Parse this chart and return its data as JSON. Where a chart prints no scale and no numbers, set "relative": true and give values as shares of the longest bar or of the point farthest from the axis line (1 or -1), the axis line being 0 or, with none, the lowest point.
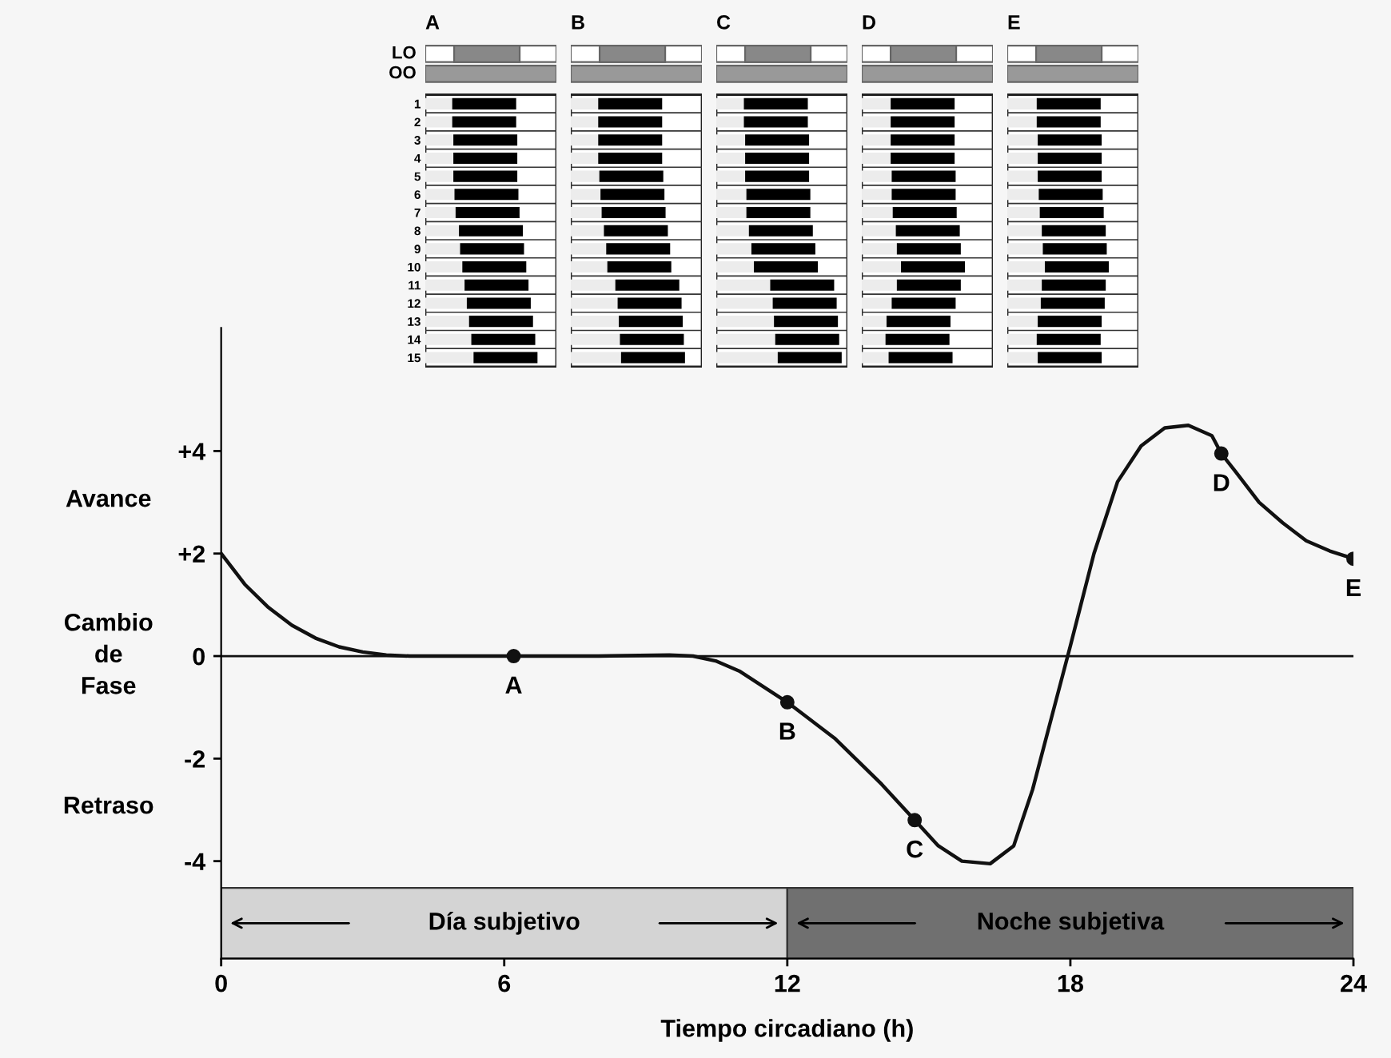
{
  "chart_data": [
    {
      "type": "line",
      "xlabel": "Tiempo circadiano (h)",
      "x": [
        0,
        0.5,
        1,
        1.5,
        2,
        2.5,
        3,
        3.5,
        4,
        6.2,
        8,
        9.5,
        10,
        10.5,
        11,
        11.5,
        12,
        13,
        14,
        14.7,
        15.2,
        15.7,
        16.3,
        16.8,
        17.2,
        17.6,
        18,
        18.5,
        19,
        19.5,
        20,
        20.5,
        21,
        21.2,
        21.5,
        22,
        22.5,
        23,
        23.5,
        24
      ],
      "series": [
        {
          "type": "line",
          "color": "#111111",
          "values": [
            2,
            1.4,
            0.95,
            0.6,
            0.35,
            0.18,
            0.08,
            0.02,
            0,
            0,
            0,
            0.02,
            0,
            -0.1,
            -0.3,
            -0.6,
            -0.9,
            -1.6,
            -2.5,
            -3.2,
            -3.7,
            -4.0,
            -4.05,
            -3.7,
            -2.6,
            -1.2,
            0.2,
            2.0,
            3.4,
            4.1,
            4.45,
            4.5,
            4.3,
            3.95,
            3.6,
            3.0,
            2.6,
            2.25,
            2.05,
            1.9
          ],
          "marker": "none"
        },
        {
          "type": "scatter",
          "color": "#111111",
          "x": [
            6.2,
            12,
            14.7,
            21.2,
            24
          ],
          "values": [
            0,
            -0.9,
            -3.2,
            3.95,
            1.9
          ],
          "marker": "circle"
        }
      ],
      "xlim": [
        0,
        24
      ],
      "xticks": [
        0,
        6,
        12,
        18,
        24
      ],
      "ylim": [
        -5.9,
        6.4
      ],
      "yticks": [
        {
          "value": 4,
          "label": "+4"
        },
        {
          "value": 2,
          "label": "+2"
        },
        0,
        -2,
        -4
      ],
      "ref_lines": [
        {
          "axis": "y",
          "value": 0,
          "color": "#111111"
        }
      ],
      "bands": [
        {
          "axis": "x",
          "from": 0,
          "to": 12,
          "label": "Día subjetivo",
          "color": "#d4d4d4"
        },
        {
          "axis": "x",
          "from": 12,
          "to": 24,
          "label": "Noche subjetiva",
          "color": "#707070"
        }
      ],
      "annotations": [
        {
          "text": "A",
          "x": 6.2,
          "y": 0
        },
        {
          "text": "B",
          "x": 12,
          "y": -0.9
        },
        {
          "text": "C",
          "x": 14.7,
          "y": -3.2
        },
        {
          "text": "D",
          "x": 21.2,
          "y": 3.95
        },
        {
          "text": "E",
          "x": 24,
          "y": 1.9
        },
        "Avance",
        "Cambio\nde\nFase",
        "Retraso"
      ],
      "grid": false,
      "legend": false
    },
    {
      "type": "bar",
      "orientation": "horizontal",
      "relative": true,
      "stacked": true,
      "title": "A",
      "tick_labels": "y",
      "categories": [
        "1",
        "2",
        "3",
        "4",
        "5",
        "6",
        "7",
        "8",
        "9",
        "10",
        "11",
        "12",
        "13",
        "14",
        "15"
      ],
      "series": [
        {
          "color": "#ececec",
          "values": [
            0.24,
            0.24,
            0.25,
            0.25,
            0.25,
            0.26,
            0.27,
            0.3,
            0.31,
            0.33,
            0.35,
            0.37,
            0.39,
            0.41,
            0.43
          ]
        },
        {
          "color": "#000000",
          "values": [
            0.57,
            0.57,
            0.57,
            0.57,
            0.57,
            0.57,
            0.57,
            0.57,
            0.57,
            0.57,
            0.57,
            0.57,
            0.57,
            0.57,
            0.57
          ]
        }
      ],
      "annotations": [
        "LO",
        "OO"
      ]
    },
    {
      "type": "bar",
      "orientation": "horizontal",
      "relative": true,
      "stacked": true,
      "title": "B",
      "tick_labels": false,
      "categories": [
        "1",
        "2",
        "3",
        "4",
        "5",
        "6",
        "7",
        "8",
        "9",
        "10",
        "11",
        "12",
        "13",
        "14",
        "15"
      ],
      "series": [
        {
          "color": "#ececec",
          "values": [
            0.24,
            0.24,
            0.24,
            0.24,
            0.25,
            0.26,
            0.27,
            0.29,
            0.31,
            0.32,
            0.39,
            0.41,
            0.42,
            0.43,
            0.44
          ]
        },
        {
          "color": "#000000",
          "values": [
            0.56,
            0.56,
            0.56,
            0.56,
            0.56,
            0.56,
            0.56,
            0.56,
            0.56,
            0.56,
            0.56,
            0.56,
            0.56,
            0.56,
            0.56
          ]
        }
      ]
    },
    {
      "type": "bar",
      "orientation": "horizontal",
      "relative": true,
      "stacked": true,
      "title": "C",
      "tick_labels": false,
      "categories": [
        "1",
        "2",
        "3",
        "4",
        "5",
        "6",
        "7",
        "8",
        "9",
        "10",
        "11",
        "12",
        "13",
        "14",
        "15"
      ],
      "series": [
        {
          "color": "#ececec",
          "values": [
            0.22,
            0.22,
            0.23,
            0.23,
            0.23,
            0.24,
            0.24,
            0.26,
            0.28,
            0.3,
            0.43,
            0.45,
            0.46,
            0.47,
            0.49
          ]
        },
        {
          "color": "#000000",
          "values": [
            0.51,
            0.51,
            0.51,
            0.51,
            0.51,
            0.51,
            0.51,
            0.51,
            0.51,
            0.51,
            0.51,
            0.51,
            0.51,
            0.51,
            0.51
          ]
        }
      ]
    },
    {
      "type": "bar",
      "orientation": "horizontal",
      "relative": true,
      "stacked": true,
      "title": "D",
      "tick_labels": false,
      "categories": [
        "1",
        "2",
        "3",
        "4",
        "5",
        "6",
        "7",
        "8",
        "9",
        "10",
        "11",
        "12",
        "13",
        "14",
        "15"
      ],
      "series": [
        {
          "color": "#ececec",
          "values": [
            0.28,
            0.28,
            0.28,
            0.28,
            0.29,
            0.29,
            0.3,
            0.33,
            0.34,
            0.38,
            0.34,
            0.29,
            0.24,
            0.23,
            0.26
          ]
        },
        {
          "color": "#000000",
          "values": [
            0.62,
            0.62,
            0.62,
            0.62,
            0.62,
            0.62,
            0.62,
            0.62,
            0.62,
            0.62,
            0.62,
            0.62,
            0.62,
            0.62,
            0.62
          ]
        }
      ]
    },
    {
      "type": "bar",
      "orientation": "horizontal",
      "relative": true,
      "stacked": true,
      "title": "E",
      "tick_labels": false,
      "categories": [
        "1",
        "2",
        "3",
        "4",
        "5",
        "6",
        "7",
        "8",
        "9",
        "10",
        "11",
        "12",
        "13",
        "14",
        "15"
      ],
      "series": [
        {
          "color": "#ececec",
          "values": [
            0.29,
            0.29,
            0.3,
            0.3,
            0.3,
            0.31,
            0.32,
            0.34,
            0.35,
            0.37,
            0.34,
            0.33,
            0.3,
            0.29,
            0.3
          ]
        },
        {
          "color": "#000000",
          "values": [
            0.63,
            0.63,
            0.63,
            0.63,
            0.63,
            0.63,
            0.63,
            0.63,
            0.63,
            0.63,
            0.63,
            0.63,
            0.63,
            0.63,
            0.63
          ]
        }
      ]
    }
  ]
}
